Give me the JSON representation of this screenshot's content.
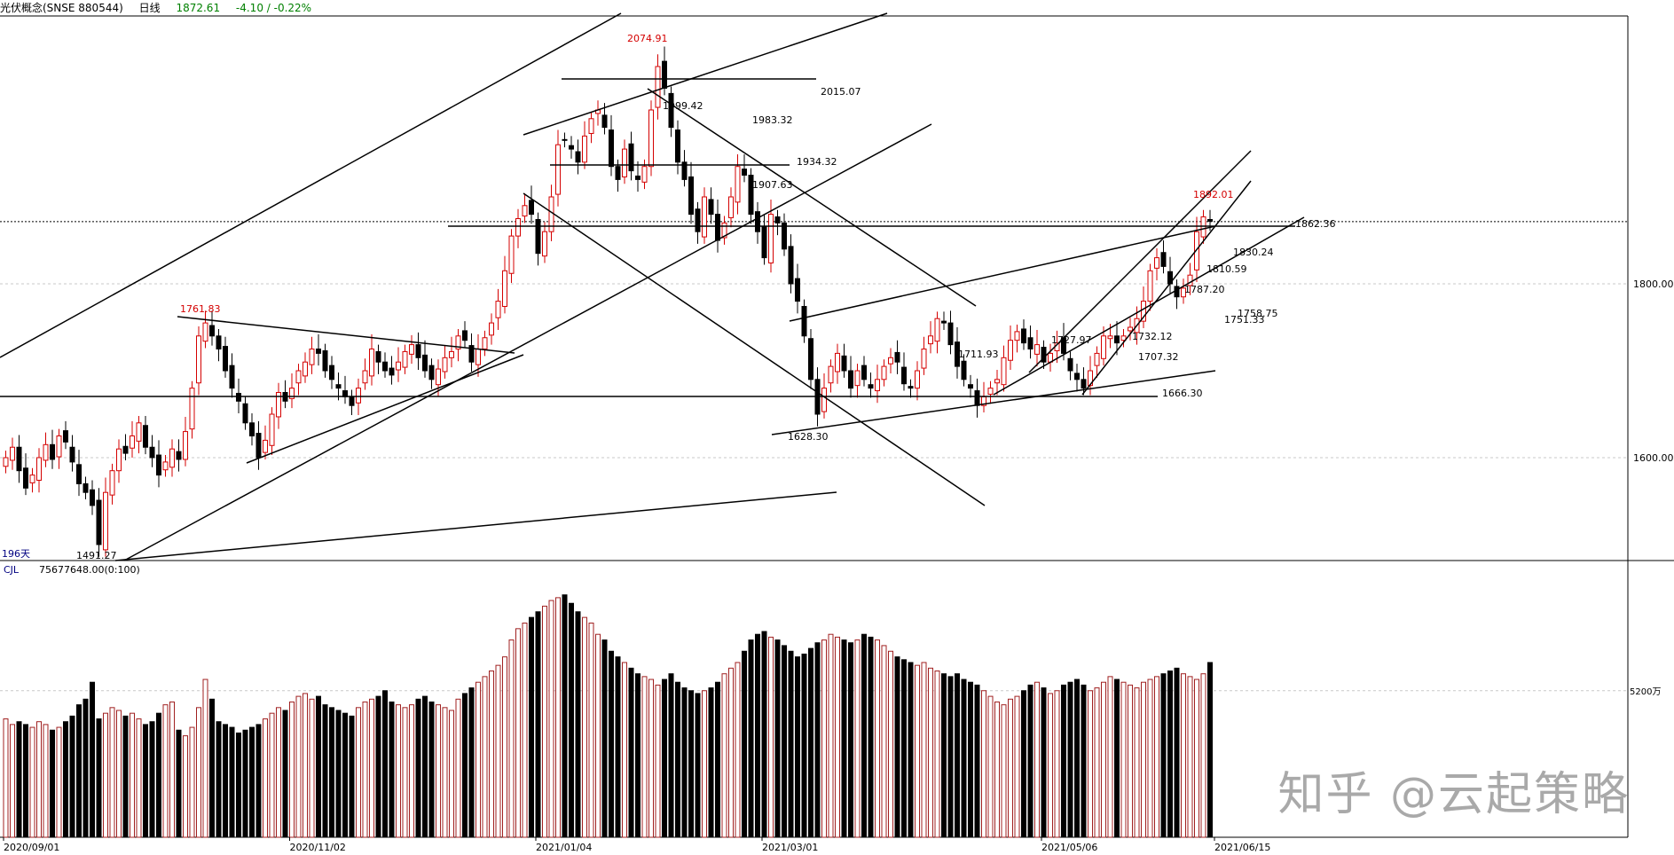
{
  "header": {
    "symbol": "光伏概念(SNSE 880544)",
    "period": "日线",
    "price": "1872.61",
    "change": "-4.10 / -0.22%"
  },
  "days_label": "196天",
  "volume_header": "CJL",
  "volume_value": "75677648.00(0:100)",
  "watermark": "知乎 @云起策略",
  "colors": {
    "up": "#d40000",
    "down": "#000000",
    "grid": "#c8c8c8"
  },
  "chart_data": {
    "type": "candlestick",
    "price_axis": {
      "ticks": [
        1600,
        1800
      ],
      "labels": [
        "1600.00",
        "1800.00"
      ]
    },
    "volume_axis": {
      "ticks": [
        52000000
      ],
      "labels": [
        "5200万"
      ]
    },
    "date_labels": [
      {
        "index": 0,
        "label": "2020/09/01"
      },
      {
        "index": 43,
        "label": "2020/11/02"
      },
      {
        "index": 80,
        "label": "2021/01/04"
      },
      {
        "index": 114,
        "label": "2021/03/01"
      },
      {
        "index": 156,
        "label": "2021/05/06"
      },
      {
        "index": 182,
        "label": "2021/06/15"
      }
    ],
    "annotations": [
      {
        "label": "2074.91",
        "index": 98,
        "value": 2074.91,
        "color": "red"
      },
      {
        "label": "1761.83",
        "index": 29,
        "value": 1761.83,
        "color": "red"
      },
      {
        "label": "1491.27",
        "index": 14,
        "value": 1491.27,
        "color": "black"
      },
      {
        "label": "1628.30",
        "index": 122,
        "value": 1628.3,
        "color": "black"
      },
      {
        "label": "1892.01",
        "index": 182,
        "value": 1892.01,
        "color": "red"
      },
      {
        "label": "1999.42",
        "index": 97,
        "value": 1999.42,
        "color": "black"
      },
      {
        "label": "2015.07",
        "value": 2015.07,
        "color": "black"
      },
      {
        "label": "1983.32",
        "value": 1983.32,
        "color": "black"
      },
      {
        "label": "1934.32",
        "value": 1934.32,
        "color": "black"
      },
      {
        "label": "1907.63",
        "value": 1907.63,
        "color": "black"
      },
      {
        "label": "1862.36",
        "value": 1862.36,
        "color": "black"
      },
      {
        "label": "1830.24",
        "value": 1830.24,
        "color": "black"
      },
      {
        "label": "1810.59",
        "value": 1810.59,
        "color": "black"
      },
      {
        "label": "1787.20",
        "value": 1787.2,
        "color": "black"
      },
      {
        "label": "1758.75",
        "value": 1758.75,
        "color": "black"
      },
      {
        "label": "1751.33",
        "value": 1751.33,
        "color": "black"
      },
      {
        "label": "1732.12",
        "value": 1732.12,
        "color": "black"
      },
      {
        "label": "1727.97",
        "value": 1727.97,
        "color": "black"
      },
      {
        "label": "1711.93",
        "value": 1711.93,
        "color": "black"
      },
      {
        "label": "1707.32",
        "value": 1707.32,
        "color": "black"
      },
      {
        "label": "1666.30",
        "value": 1666.3,
        "color": "black"
      }
    ],
    "closes": [
      1600,
      1612,
      1585,
      1565,
      1580,
      1600,
      1615,
      1598,
      1625,
      1618,
      1595,
      1570,
      1560,
      1545,
      1500,
      1560,
      1585,
      1610,
      1605,
      1625,
      1640,
      1612,
      1600,
      1580,
      1595,
      1610,
      1598,
      1630,
      1680,
      1740,
      1755,
      1740,
      1725,
      1700,
      1680,
      1665,
      1640,
      1625,
      1600,
      1620,
      1650,
      1675,
      1665,
      1680,
      1700,
      1710,
      1725,
      1720,
      1700,
      1690,
      1680,
      1670,
      1660,
      1680,
      1700,
      1725,
      1710,
      1700,
      1695,
      1710,
      1722,
      1730,
      1715,
      1700,
      1690,
      1702,
      1715,
      1722,
      1740,
      1735,
      1710,
      1725,
      1738,
      1755,
      1780,
      1815,
      1855,
      1875,
      1890,
      1880,
      1835,
      1860,
      1900,
      1960,
      1965,
      1955,
      1940,
      1970,
      1990,
      2000,
      1980,
      1935,
      1920,
      1955,
      1930,
      1920,
      1935,
      2000,
      2050,
      2025,
      1980,
      1940,
      1920,
      1880,
      1860,
      1900,
      1880,
      1850,
      1870,
      1900,
      1935,
      1925,
      1880,
      1860,
      1830,
      1880,
      1870,
      1840,
      1800,
      1780,
      1740,
      1690,
      1650,
      1680,
      1705,
      1720,
      1700,
      1680,
      1700,
      1690,
      1680,
      1690,
      1705,
      1715,
      1710,
      1685,
      1680,
      1700,
      1725,
      1740,
      1760,
      1755,
      1730,
      1705,
      1690,
      1680,
      1660,
      1670,
      1680,
      1690,
      1715,
      1735,
      1745,
      1732,
      1725,
      1730,
      1710,
      1720,
      1732,
      1720,
      1700,
      1690,
      1680,
      1700,
      1720,
      1740,
      1740,
      1732,
      1740,
      1750,
      1760,
      1780,
      1815,
      1830,
      1820,
      1800,
      1785,
      1795,
      1810,
      1860,
      1877,
      1872
    ],
    "volumes": [
      42,
      40,
      41,
      40,
      39,
      41,
      40,
      38,
      39,
      41,
      43,
      47,
      49,
      55,
      42,
      44,
      46,
      45,
      43,
      44,
      42,
      40,
      41,
      44,
      47,
      48,
      38,
      36,
      39,
      46,
      56,
      49,
      41,
      40,
      39,
      37,
      38,
      39,
      40,
      42,
      44,
      46,
      45,
      48,
      50,
      51,
      49,
      50,
      47,
      46,
      45,
      44,
      43,
      46,
      48,
      49,
      50,
      52,
      48,
      47,
      46,
      47,
      49,
      50,
      48,
      47,
      46,
      45,
      49,
      51,
      53,
      55,
      57,
      59,
      61,
      64,
      70,
      74,
      76,
      78,
      80,
      82,
      84,
      85,
      86,
      83,
      80,
      78,
      76,
      72,
      70,
      66,
      64,
      62,
      60,
      58,
      57,
      56,
      54,
      56,
      58,
      55,
      53,
      52,
      51,
      52,
      53,
      55,
      58,
      60,
      62,
      66,
      70,
      72,
      73,
      71,
      70,
      68,
      66,
      64,
      65,
      67,
      69,
      70,
      72,
      71,
      70,
      69,
      70,
      72,
      71,
      70,
      68,
      66,
      64,
      63,
      62,
      61,
      62,
      60,
      59,
      58,
      57,
      58,
      56,
      55,
      54,
      52,
      50,
      48,
      47,
      49,
      50,
      52,
      54,
      55,
      53,
      51,
      52,
      54,
      55,
      56,
      54,
      52,
      53,
      55,
      57,
      56,
      55,
      54,
      53,
      55,
      56,
      57,
      58,
      59,
      60,
      58,
      57,
      56,
      58,
      62,
      64,
      60
    ]
  }
}
